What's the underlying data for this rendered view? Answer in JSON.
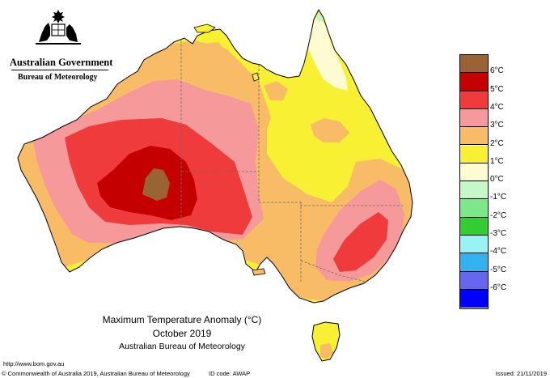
{
  "header": {
    "gov_name": "Australian Government",
    "bureau_name": "Bureau of Meteorology",
    "crest_icon": "commonwealth-coat-of-arms-icon"
  },
  "map": {
    "colors": {
      "c6": "#9a6333",
      "c5": "#c50000",
      "c4": "#ef3b3b",
      "c3": "#f5999b",
      "c2": "#f8bb66",
      "c1": "#f7f033",
      "c0": "#fcfbd2",
      "cm1": "#c5f7c9",
      "outline": "#000000",
      "state_border": "#6d6d6d"
    }
  },
  "legend": {
    "items": [
      {
        "label": "6°C",
        "color": "#9a6333"
      },
      {
        "label": "5°C",
        "color": "#c50000"
      },
      {
        "label": "4°C",
        "color": "#ef3b3b"
      },
      {
        "label": "3°C",
        "color": "#f5999b"
      },
      {
        "label": "2°C",
        "color": "#f8bb66"
      },
      {
        "label": "1°C",
        "color": "#f7f033"
      },
      {
        "label": "0°C",
        "color": "#fcfbd2"
      },
      {
        "label": "-1°C",
        "color": "#c5f7c9"
      },
      {
        "label": "-2°C",
        "color": "#7ce88a"
      },
      {
        "label": "-3°C",
        "color": "#33cc33"
      },
      {
        "label": "-4°C",
        "color": "#99f3f3"
      },
      {
        "label": "-5°C",
        "color": "#33b3ee"
      },
      {
        "label": "-6°C",
        "color": "#6666ee"
      },
      {
        "label": "",
        "color": "#0000ff"
      }
    ]
  },
  "title": {
    "line1": "Maximum Temperature Anomaly (°C)",
    "line2": "October 2019",
    "line3": "Australian Bureau of Meteorology"
  },
  "footer": {
    "url": "http://www.bom.gov.au",
    "copyright": "© Commonwealth of Australia 2019, Australian Bureau of Meteorology",
    "id_code": "ID code: AWAP",
    "issued": "Issued: 21/11/2019"
  }
}
